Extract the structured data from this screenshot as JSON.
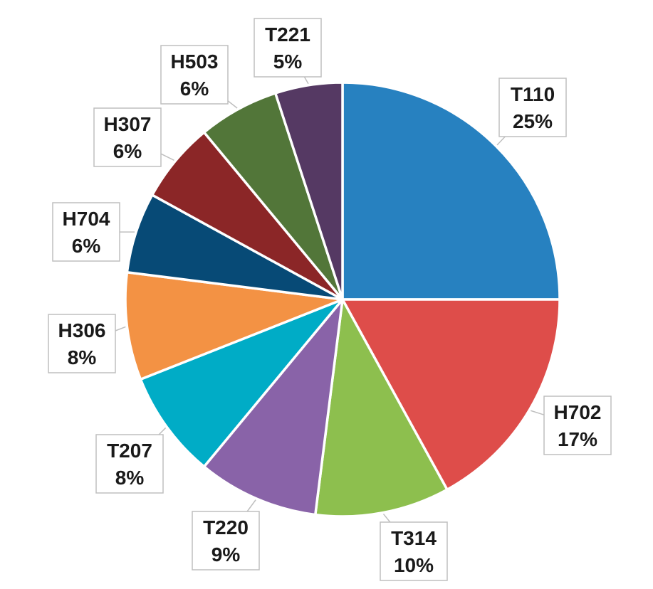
{
  "chart_data": {
    "type": "pie",
    "title": "",
    "categories": [
      "T110",
      "H702",
      "T314",
      "T220",
      "T207",
      "H306",
      "H704",
      "H307",
      "H503",
      "T221"
    ],
    "values": [
      25,
      17,
      10,
      9,
      8,
      8,
      6,
      6,
      6,
      5
    ],
    "value_labels": [
      "25%",
      "17%",
      "10%",
      "9%",
      "8%",
      "8%",
      "6%",
      "6%",
      "6%",
      "5%"
    ],
    "colors": [
      "#2781c0",
      "#de4d4a",
      "#8dbf4e",
      "#8963a8",
      "#00acc6",
      "#f39244",
      "#074a76",
      "#8b2627",
      "#527639",
      "#553963"
    ],
    "start_angle_deg": 0,
    "direction": "clockwise",
    "legend": "none",
    "data_labels": "callouts with category name and percentage"
  }
}
